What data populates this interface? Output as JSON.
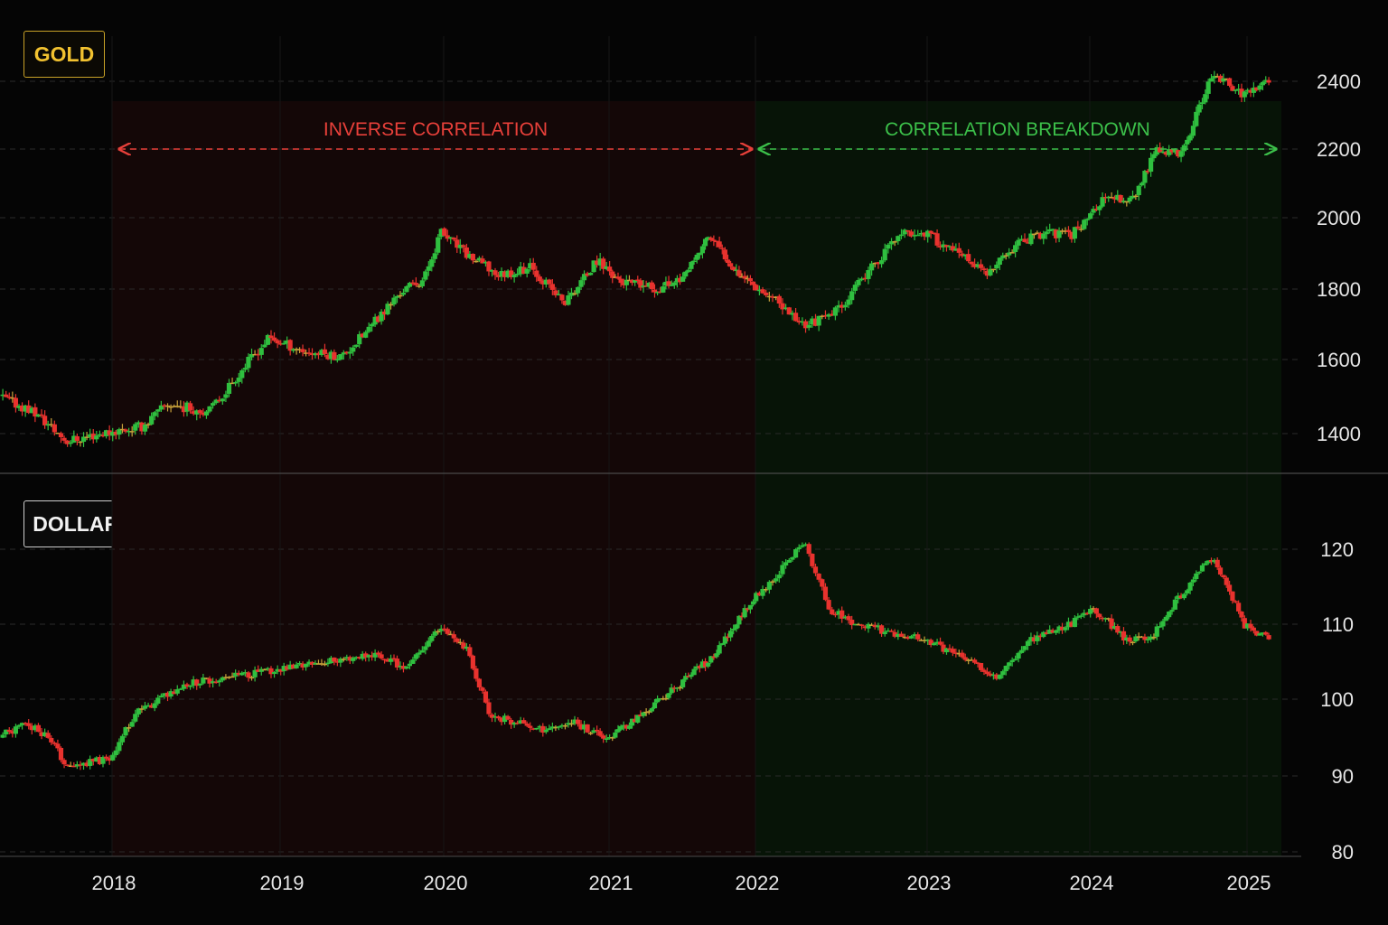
{
  "colors": {
    "background": "#050505",
    "bull": "#2fbf3f",
    "bear": "#e8322e",
    "doji": "#c8a13a",
    "grid": "#1c1c1c",
    "inverse_zone": "#140707",
    "breakdown_zone": "#071407",
    "inverse_text": "#e8403a",
    "breakdown_text": "#3cc04a",
    "axis_text": "#e6e6e6"
  },
  "chart_data": [
    {
      "id": "gold",
      "type": "candlestick",
      "title": "GOLD",
      "y_ticks": [
        1400,
        1600,
        1800,
        2000,
        2200,
        2400
      ],
      "ylim": [
        1290,
        2510
      ],
      "x_ticks": [
        "2018",
        "2019",
        "2020",
        "2021",
        "2022",
        "2023",
        "2024",
        "2025"
      ],
      "xlim": [
        2017.35,
        2025.25
      ],
      "anchors": [
        [
          2017.35,
          1500
        ],
        [
          2017.55,
          1460
        ],
        [
          2017.75,
          1380
        ],
        [
          2017.95,
          1400
        ],
        [
          2018.2,
          1420
        ],
        [
          2018.35,
          1480
        ],
        [
          2018.6,
          1460
        ],
        [
          2018.75,
          1550
        ],
        [
          2018.95,
          1660
        ],
        [
          2019.2,
          1620
        ],
        [
          2019.4,
          1610
        ],
        [
          2019.55,
          1680
        ],
        [
          2019.75,
          1790
        ],
        [
          2019.9,
          1830
        ],
        [
          2020.0,
          1960
        ],
        [
          2020.15,
          1900
        ],
        [
          2020.35,
          1840
        ],
        [
          2020.55,
          1860
        ],
        [
          2020.75,
          1760
        ],
        [
          2020.95,
          1880
        ],
        [
          2021.1,
          1820
        ],
        [
          2021.35,
          1800
        ],
        [
          2021.55,
          1840
        ],
        [
          2021.7,
          1950
        ],
        [
          2021.9,
          1850
        ],
        [
          2022.05,
          1800
        ],
        [
          2022.3,
          1700
        ],
        [
          2022.45,
          1720
        ],
        [
          2022.6,
          1800
        ],
        [
          2022.85,
          1950
        ],
        [
          2023.0,
          1960
        ],
        [
          2023.2,
          1900
        ],
        [
          2023.4,
          1840
        ],
        [
          2023.55,
          1920
        ],
        [
          2023.75,
          1960
        ],
        [
          2023.9,
          1950
        ],
        [
          2024.1,
          2050
        ],
        [
          2024.3,
          2060
        ],
        [
          2024.45,
          2200
        ],
        [
          2024.6,
          2180
        ],
        [
          2024.8,
          2420
        ],
        [
          2025.0,
          2360
        ],
        [
          2025.15,
          2400
        ]
      ]
    },
    {
      "id": "dxy",
      "type": "candlestick",
      "title": "DOLLAR INDEX (DXY)",
      "y_ticks": [
        80,
        90,
        100,
        110,
        120
      ],
      "ylim": [
        80,
        124
      ],
      "x_ticks": [
        "2018",
        "2019",
        "2020",
        "2021",
        "2022",
        "2023",
        "2024",
        "2025"
      ],
      "xlim": [
        2017.35,
        2025.25
      ],
      "anchors": [
        [
          2017.35,
          95
        ],
        [
          2017.5,
          97
        ],
        [
          2017.65,
          95
        ],
        [
          2017.75,
          91
        ],
        [
          2017.95,
          92
        ],
        [
          2018.0,
          92
        ],
        [
          2018.15,
          98
        ],
        [
          2018.45,
          102
        ],
        [
          2018.75,
          103
        ],
        [
          2019.0,
          104
        ],
        [
          2019.3,
          105
        ],
        [
          2019.6,
          106
        ],
        [
          2019.8,
          104
        ],
        [
          2020.0,
          110
        ],
        [
          2020.15,
          107
        ],
        [
          2020.3,
          98
        ],
        [
          2020.6,
          96
        ],
        [
          2020.8,
          97
        ],
        [
          2021.0,
          95
        ],
        [
          2021.25,
          98
        ],
        [
          2021.5,
          102
        ],
        [
          2021.75,
          106
        ],
        [
          2021.95,
          112
        ],
        [
          2022.2,
          118
        ],
        [
          2022.3,
          121
        ],
        [
          2022.45,
          112
        ],
        [
          2022.6,
          110
        ],
        [
          2022.8,
          109
        ],
        [
          2023.0,
          108
        ],
        [
          2023.2,
          106
        ],
        [
          2023.45,
          103
        ],
        [
          2023.65,
          108
        ],
        [
          2023.9,
          110
        ],
        [
          2024.05,
          112
        ],
        [
          2024.25,
          108
        ],
        [
          2024.4,
          108
        ],
        [
          2024.6,
          114
        ],
        [
          2024.8,
          119
        ],
        [
          2025.0,
          110
        ],
        [
          2025.15,
          108
        ]
      ]
    }
  ],
  "zones": [
    {
      "label": "INVERSE CORRELATION",
      "start": "2018",
      "end": "2022",
      "kind": "inverse"
    },
    {
      "label": "CORRELATION BREAKDOWN",
      "start": "2022",
      "end": "2025",
      "kind": "breakdown"
    }
  ]
}
